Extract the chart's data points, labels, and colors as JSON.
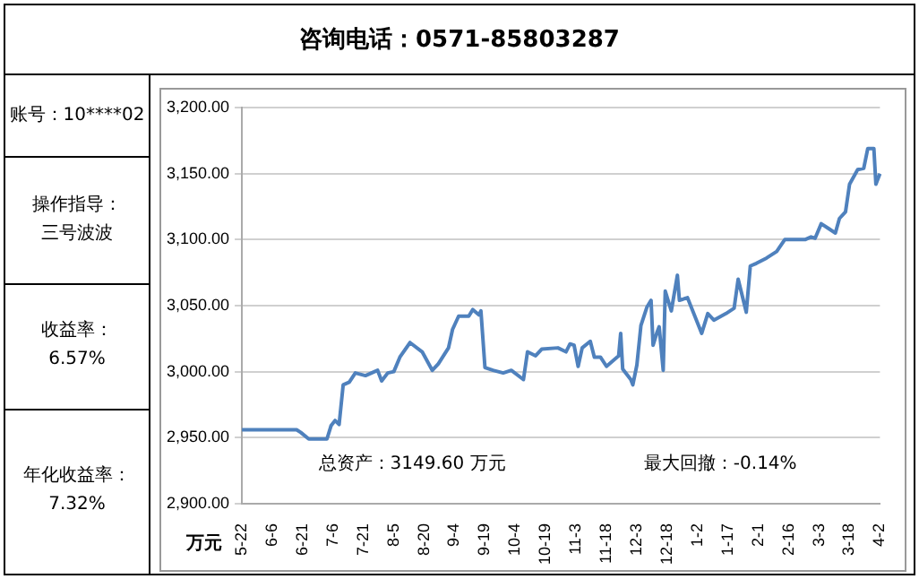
{
  "chart_data": {
    "type": "line",
    "title": "咨询电话：0571-85803287",
    "ylabel": "万元",
    "annotations": [
      "账号：10****02",
      "操作指导：",
      "三号波波",
      "收益率：",
      "6.57%",
      "年化收益率：",
      "7.32%",
      "总资产：3149.60 万元",
      "最大回撤：-0.14%"
    ],
    "categories": [
      "5-22",
      null,
      null,
      null,
      null,
      null,
      null,
      null,
      null,
      null,
      null,
      null,
      null,
      null,
      null,
      "6-6",
      null,
      null,
      null,
      null,
      null,
      null,
      null,
      null,
      null,
      null,
      null,
      null,
      null,
      null,
      "6-21",
      null,
      null,
      null,
      null,
      null,
      null,
      null,
      null,
      null,
      null,
      null,
      null,
      null,
      null,
      "7-6",
      null,
      null,
      null,
      null,
      null,
      null,
      null,
      null,
      null,
      null,
      null,
      null,
      null,
      null,
      "7-21",
      null,
      null,
      null,
      null,
      null,
      null,
      null,
      null,
      null,
      null,
      null,
      null,
      null,
      null,
      "8-5",
      null,
      null,
      null,
      null,
      null,
      null,
      null,
      null,
      null,
      null,
      null,
      null,
      null,
      null,
      "8-20",
      null,
      null,
      null,
      null,
      null,
      null,
      null,
      null,
      null,
      null,
      null,
      null,
      null,
      null,
      "9-4",
      null,
      null,
      null,
      null,
      null,
      null,
      null,
      null,
      null,
      null,
      null,
      null,
      null,
      null,
      "9-19",
      null,
      null,
      null,
      null,
      null,
      null,
      null,
      null,
      null,
      null,
      null,
      null,
      null,
      null,
      "10-4",
      null,
      null,
      null,
      null,
      null,
      null,
      null,
      null,
      null,
      null,
      null,
      null,
      null,
      null,
      "10-19",
      null,
      null,
      null,
      null,
      null,
      null,
      null,
      null,
      null,
      null,
      null,
      null,
      null,
      null,
      "11-3",
      null,
      null,
      null,
      null,
      null,
      null,
      null,
      null,
      null,
      null,
      null,
      null,
      null,
      null,
      "11-18",
      null,
      null,
      null,
      null,
      null,
      null,
      null,
      null,
      null,
      null,
      null,
      null,
      null,
      null,
      "12-3",
      null,
      null,
      null,
      null,
      null,
      null,
      null,
      null,
      null,
      null,
      null,
      null,
      null,
      null,
      "12-18",
      null,
      null,
      null,
      null,
      null,
      null,
      null,
      null,
      null,
      null,
      null,
      null,
      null,
      null,
      "1-2",
      null,
      null,
      null,
      null,
      null,
      null,
      null,
      null,
      null,
      null,
      null,
      null,
      null,
      null,
      "1-17",
      null,
      null,
      null,
      null,
      null,
      null,
      null,
      null,
      null,
      null,
      null,
      null,
      null,
      null,
      "2-1",
      null,
      null,
      null,
      null,
      null,
      null,
      null,
      null,
      null,
      null,
      null,
      null,
      null,
      null,
      "2-16",
      null,
      null,
      null,
      null,
      null,
      null,
      null,
      null,
      null,
      null,
      null,
      null,
      null,
      null,
      "3-3",
      null,
      null,
      null,
      null,
      null,
      null,
      null,
      null,
      null,
      null,
      null,
      null,
      null,
      null,
      "3-18",
      null,
      null,
      null,
      null,
      null,
      null,
      null,
      null,
      null,
      null,
      null,
      null,
      null,
      null,
      "4-2"
    ],
    "series": [
      {
        "color": "#4f81bd",
        "values": [
          2956,
          null,
          null,
          null,
          null,
          null,
          null,
          null,
          null,
          null,
          null,
          null,
          null,
          null,
          null,
          null,
          null,
          null,
          null,
          null,
          null,
          null,
          null,
          null,
          null,
          null,
          null,
          2956,
          null,
          2954,
          null,
          null,
          null,
          2949,
          null,
          null,
          null,
          null,
          null,
          null,
          null,
          null,
          2949,
          null,
          2959,
          null,
          2963,
          null,
          2960,
          null,
          2990,
          null,
          null,
          2992,
          null,
          null,
          2999,
          null,
          null,
          null,
          null,
          2997,
          null,
          null,
          null,
          null,
          null,
          3001,
          null,
          2993,
          null,
          null,
          2999,
          null,
          null,
          3000,
          null,
          null,
          3011,
          null,
          null,
          null,
          null,
          3022,
          null,
          null,
          null,
          null,
          null,
          3015,
          null,
          null,
          null,
          null,
          3001,
          null,
          null,
          3006,
          null,
          null,
          null,
          null,
          3018,
          null,
          3032,
          null,
          null,
          3042,
          null,
          null,
          null,
          null,
          3042,
          null,
          3047,
          null,
          null,
          3043,
          3046,
          null,
          3003,
          null,
          null,
          null,
          3001,
          null,
          null,
          null,
          null,
          2999,
          null,
          null,
          null,
          3001,
          null,
          null,
          null,
          null,
          null,
          2994,
          null,
          3015,
          null,
          null,
          null,
          3012,
          null,
          null,
          3017,
          null,
          null,
          null,
          null,
          null,
          null,
          null,
          3018,
          null,
          null,
          null,
          3015,
          null,
          3021,
          null,
          3020,
          null,
          3004,
          null,
          3018,
          null,
          null,
          null,
          3023,
          null,
          3011,
          null,
          null,
          3011,
          null,
          null,
          3004,
          null,
          null,
          null,
          null,
          null,
          3012,
          3029,
          3002,
          null,
          null,
          null,
          2994,
          2990,
          null,
          3005,
          null,
          3035,
          null,
          null,
          3049,
          null,
          3054,
          3020,
          null,
          3030,
          3034,
          null,
          3001,
          3061,
          null,
          null,
          3046,
          null,
          null,
          3073,
          3054,
          null,
          null,
          null,
          3056,
          null,
          null,
          null,
          null,
          null,
          null,
          3029,
          null,
          null,
          3044,
          null,
          null,
          3039,
          null,
          null,
          null,
          null,
          null,
          3044,
          null,
          null,
          null,
          3048,
          null,
          3070,
          null,
          null,
          null,
          3045,
          null,
          3080,
          null,
          null,
          3082,
          null,
          null,
          null,
          null,
          3086,
          null,
          null,
          null,
          null,
          3091,
          null,
          null,
          null,
          3100,
          null,
          null,
          null,
          null,
          null,
          null,
          null,
          null,
          null,
          3100,
          null,
          null,
          3102,
          null,
          3101,
          null,
          null,
          3112,
          null,
          null,
          null,
          3108,
          null,
          null,
          3105,
          null,
          3116,
          null,
          null,
          3121,
          null,
          3142,
          null,
          null,
          null,
          3153,
          null,
          null,
          3154,
          null,
          3169,
          null,
          null,
          3169,
          3142,
          null,
          3150
        ]
      }
    ],
    "ylim": [
      2900,
      3200
    ],
    "yticks": [
      {
        "value": 2900,
        "label": "2,900.00"
      },
      {
        "value": 2950,
        "label": "2,950.00"
      },
      {
        "value": 3000,
        "label": "3,000.00"
      },
      {
        "value": 3050,
        "label": "3,050.00"
      },
      {
        "value": 3100,
        "label": "3,100.00"
      },
      {
        "value": 3150,
        "label": "3,150.00"
      },
      {
        "value": 3200,
        "label": "3,200.00"
      }
    ],
    "grid": "y",
    "marker": "none",
    "line_style": "solid",
    "legend": false
  }
}
